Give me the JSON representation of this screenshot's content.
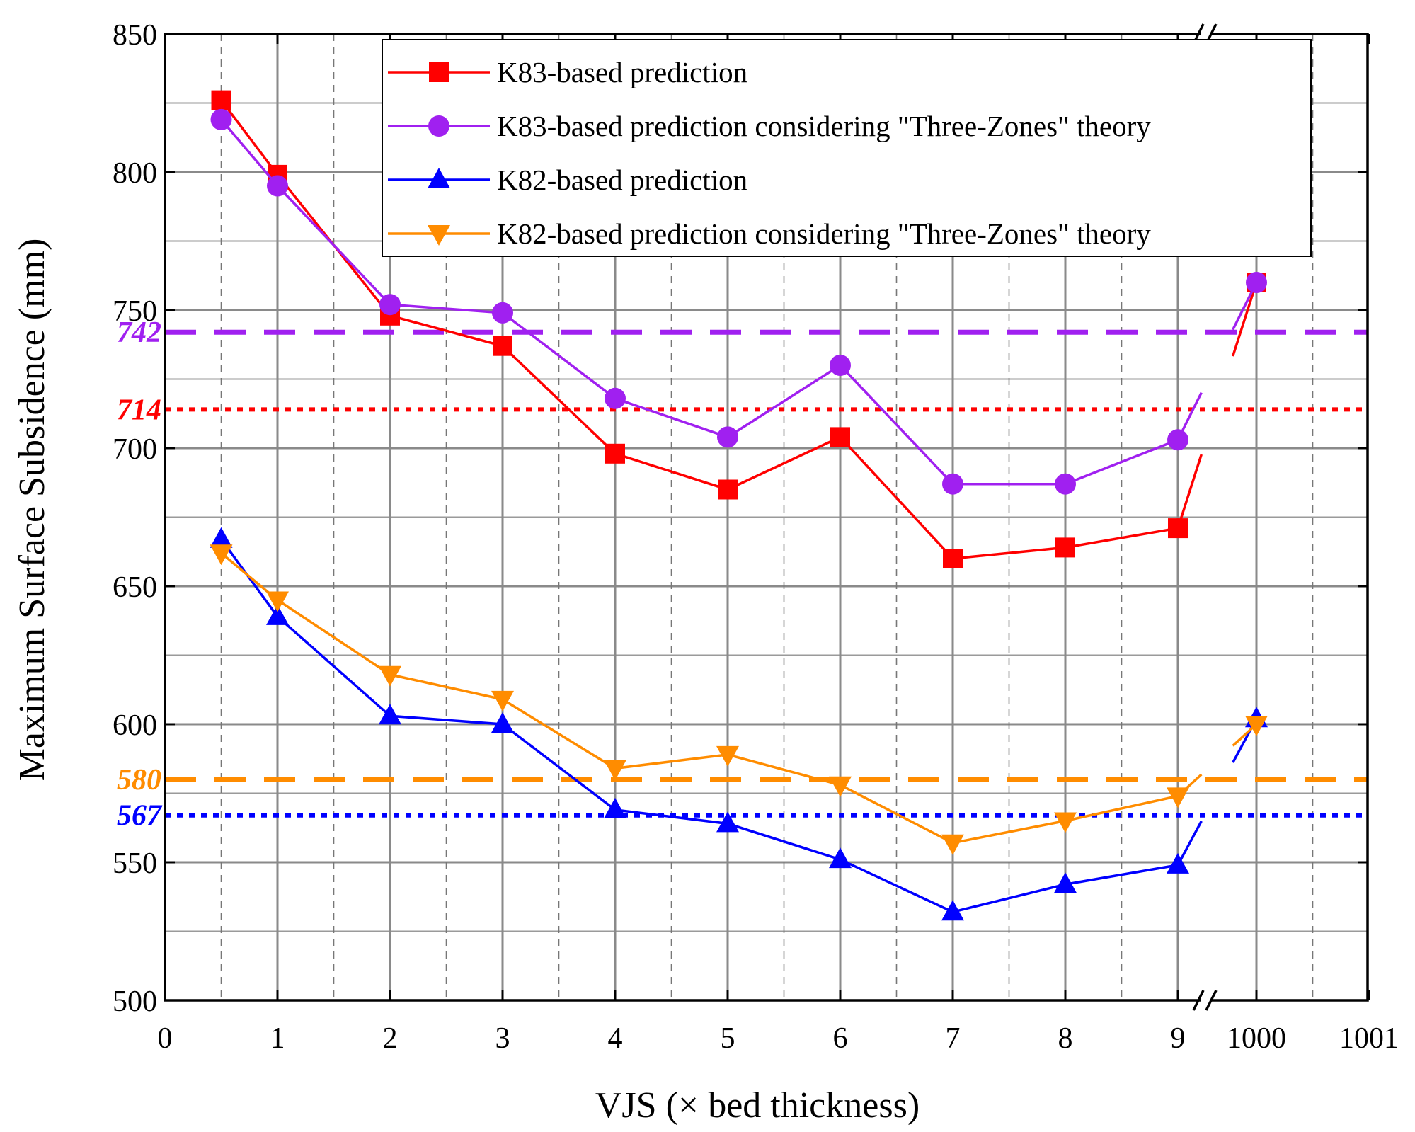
{
  "chart_data": {
    "type": "line",
    "xlabel": "VJS (× bed thickness)",
    "ylabel": "Maximum Surface Subsidence (mm)",
    "ylim": [
      500,
      850
    ],
    "yticks": [
      500,
      550,
      600,
      650,
      700,
      750,
      800,
      850
    ],
    "xtick_labels": [
      "0",
      "1",
      "2",
      "3",
      "4",
      "5",
      "6",
      "7",
      "8",
      "9",
      "1000",
      "1001"
    ],
    "axis_break": "between 9 and 1000",
    "grid": true,
    "legend_position": "top-right",
    "x": [
      0.5,
      1,
      2,
      3,
      4,
      5,
      6,
      7,
      8,
      9,
      1000
    ],
    "series": [
      {
        "name": "K83-based prediction",
        "color": "#ff0000",
        "marker": "square",
        "values": [
          826,
          799,
          748,
          737,
          698,
          685,
          704,
          660,
          664,
          671,
          760
        ]
      },
      {
        "name": "K83-based prediction considering \"Three-Zones\" theory",
        "color": "#a020f0",
        "marker": "circle",
        "values": [
          819,
          795,
          752,
          749,
          718,
          704,
          730,
          687,
          687,
          703,
          760
        ]
      },
      {
        "name": "K82-based prediction",
        "color": "#0000ff",
        "marker": "triangle-up",
        "values": [
          667,
          639,
          603,
          600,
          569,
          564,
          551,
          532,
          542,
          549,
          602
        ]
      },
      {
        "name": "K82-based prediction considering \"Three-Zones\" theory",
        "color": "#ff8c00",
        "marker": "triangle-down",
        "values": [
          662,
          645,
          618,
          609,
          584,
          589,
          578,
          557,
          565,
          574,
          600
        ]
      }
    ],
    "reference_lines": [
      {
        "value": 742,
        "label": "742",
        "color": "#a020f0",
        "style": "dashed"
      },
      {
        "value": 714,
        "label": "714",
        "color": "#ff0000",
        "style": "dotted"
      },
      {
        "value": 580,
        "label": "580",
        "color": "#ff8c00",
        "style": "dashed"
      },
      {
        "value": 567,
        "label": "567",
        "color": "#0000ff",
        "style": "dotted"
      }
    ]
  }
}
